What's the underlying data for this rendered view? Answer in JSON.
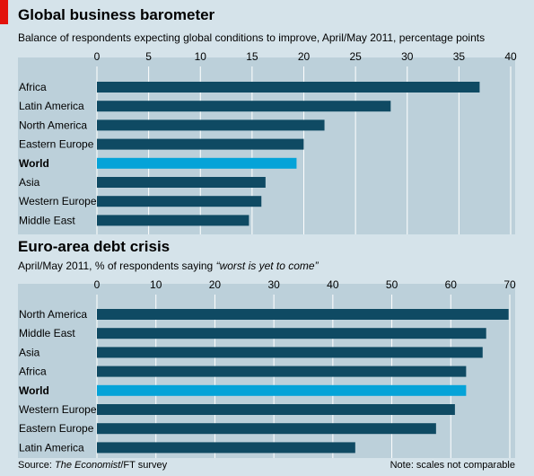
{
  "colors": {
    "page_bg": "#d5e3ea",
    "plot_bg": "#bcd0da",
    "bar": "#0f4a63",
    "highlight": "#05a3d8",
    "grid": "#ffffff",
    "accent_red": "#e3120b"
  },
  "charts": [
    {
      "title": "Global business barometer",
      "subtitle": "Balance of respondents expecting global conditions to improve, April/May 2011, percentage points",
      "subtitle_quote": ""
    },
    {
      "title": "Euro-area debt crisis",
      "subtitle": "April/May 2011, % of respondents saying",
      "subtitle_quote": "“worst is yet to come”"
    }
  ],
  "chart_data": [
    {
      "type": "bar",
      "orientation": "horizontal",
      "title": "Global business barometer",
      "subtitle": "Balance of respondents expecting global conditions to improve, April/May 2011, percentage points",
      "categories": [
        "Africa",
        "Latin America",
        "North America",
        "Eastern Europe",
        "World",
        "Asia",
        "Western Europe",
        "Middle East"
      ],
      "values": [
        37,
        28.4,
        22,
        20,
        19.3,
        16.3,
        15.9,
        14.7
      ],
      "highlight": "World",
      "xlim": [
        0,
        40
      ],
      "ticks": [
        0,
        5,
        10,
        15,
        20,
        25,
        30,
        35,
        40
      ],
      "tick_position": "top",
      "grid": true
    },
    {
      "type": "bar",
      "orientation": "horizontal",
      "title": "Euro-area debt crisis",
      "subtitle": "April/May 2011, % of respondents saying “worst is yet to come”",
      "categories": [
        "North America",
        "Middle East",
        "Asia",
        "Africa",
        "World",
        "Western Europe",
        "Eastern Europe",
        "Latin America"
      ],
      "values": [
        69.8,
        66,
        65.4,
        62.6,
        62.6,
        60.7,
        57.5,
        43.8
      ],
      "highlight": "World",
      "xlim": [
        0,
        70
      ],
      "ticks": [
        0,
        10,
        20,
        30,
        40,
        50,
        60,
        70
      ],
      "tick_position": "top",
      "grid": true
    }
  ],
  "footer": {
    "source_prefix": "Source:",
    "source_italic": "The Economist",
    "source_suffix": "/FT survey",
    "note": "Note: scales not comparable"
  }
}
